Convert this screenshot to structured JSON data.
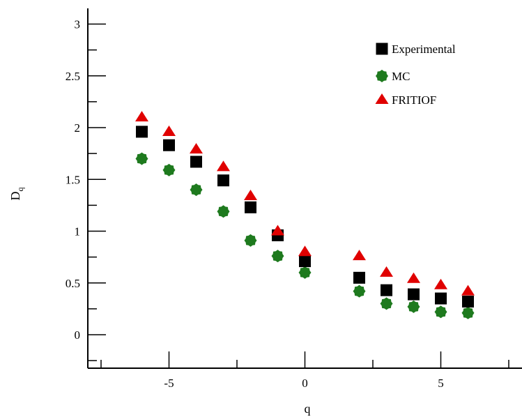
{
  "chart_data": {
    "type": "scatter",
    "xlabel": "q",
    "ylabel": {
      "base": "D",
      "subscript": "q"
    },
    "xlim": [
      -7.5,
      7.8
    ],
    "ylim": [
      -0.3,
      3.15
    ],
    "x_ticks": [
      -5,
      0,
      5
    ],
    "x_tick_labels": [
      "-5",
      "0",
      "5"
    ],
    "y_ticks": [
      0,
      0.5,
      1,
      1.5,
      2,
      2.5,
      3
    ],
    "y_tick_labels": [
      "0",
      "0.5",
      "1",
      "1.5",
      "2",
      "2.5",
      "3"
    ],
    "grid": false,
    "legend_position": "top-right",
    "series": [
      {
        "name": "Experimental",
        "marker": "square",
        "color": "#000000",
        "x": [
          -6,
          -5,
          -4,
          -3,
          -2,
          -1,
          0,
          2,
          3,
          4,
          5,
          6
        ],
        "y": [
          1.96,
          1.83,
          1.67,
          1.49,
          1.23,
          0.96,
          0.71,
          0.55,
          0.43,
          0.39,
          0.35,
          0.32
        ]
      },
      {
        "name": "MC",
        "marker": "diamond",
        "color": "#1e7a1e",
        "x": [
          -6,
          -5,
          -4,
          -3,
          -2,
          -1,
          0,
          2,
          3,
          4,
          5,
          6
        ],
        "y": [
          1.7,
          1.59,
          1.4,
          1.19,
          0.91,
          0.76,
          0.6,
          0.42,
          0.3,
          0.27,
          0.22,
          0.21
        ]
      },
      {
        "name": "FRITIOF",
        "marker": "triangle",
        "color": "#e00000",
        "x": [
          -6,
          -5,
          -4,
          -3,
          -2,
          -1,
          0,
          2,
          3,
          4,
          5,
          6
        ],
        "y": [
          2.1,
          1.96,
          1.79,
          1.62,
          1.34,
          1.0,
          0.8,
          0.76,
          0.6,
          0.54,
          0.48,
          0.42
        ]
      }
    ]
  }
}
